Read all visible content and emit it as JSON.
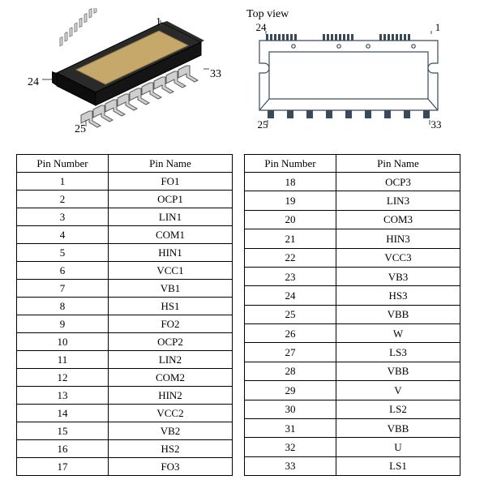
{
  "iso_view": {
    "labels": {
      "tl": "1",
      "tr": "33",
      "bl": "24",
      "br": "25"
    },
    "label_fontsize": 14,
    "label_color": "#000000",
    "body_fill": "#1a1a1a",
    "die_fill": "#c6a96a",
    "lead_fill": "#cfcfcf",
    "lead_stroke": "#5a5a5a"
  },
  "top_view": {
    "title": "Top view",
    "labels": {
      "tl": "24",
      "tr": "1",
      "bl": "25",
      "br": "33"
    },
    "label_fontsize": 14,
    "label_color": "#000000",
    "outline_stroke": "#3a4a5a",
    "outline_fill": "#ffffff",
    "stroke_width": 1.2
  },
  "tables": {
    "headers": {
      "num": "Pin Number",
      "name": "Pin Name"
    },
    "header_fontsize": 13,
    "cell_fontsize": 13,
    "border_color": "#000000",
    "left": [
      {
        "n": "1",
        "name": "FO1"
      },
      {
        "n": "2",
        "name": "OCP1"
      },
      {
        "n": "3",
        "name": "LIN1"
      },
      {
        "n": "4",
        "name": "COM1"
      },
      {
        "n": "5",
        "name": "HIN1"
      },
      {
        "n": "6",
        "name": "VCC1"
      },
      {
        "n": "7",
        "name": "VB1"
      },
      {
        "n": "8",
        "name": "HS1"
      },
      {
        "n": "9",
        "name": "FO2"
      },
      {
        "n": "10",
        "name": "OCP2"
      },
      {
        "n": "11",
        "name": "LIN2"
      },
      {
        "n": "12",
        "name": "COM2"
      },
      {
        "n": "13",
        "name": "HIN2"
      },
      {
        "n": "14",
        "name": "VCC2"
      },
      {
        "n": "15",
        "name": "VB2"
      },
      {
        "n": "16",
        "name": "HS2"
      },
      {
        "n": "17",
        "name": "FO3"
      }
    ],
    "right": [
      {
        "n": "18",
        "name": "OCP3"
      },
      {
        "n": "19",
        "name": "LIN3"
      },
      {
        "n": "20",
        "name": "COM3"
      },
      {
        "n": "21",
        "name": "HIN3"
      },
      {
        "n": "22",
        "name": "VCC3"
      },
      {
        "n": "23",
        "name": "VB3"
      },
      {
        "n": "24",
        "name": "HS3"
      },
      {
        "n": "25",
        "name": "VBB"
      },
      {
        "n": "26",
        "name": "W"
      },
      {
        "n": "27",
        "name": "LS3"
      },
      {
        "n": "28",
        "name": "VBB"
      },
      {
        "n": "29",
        "name": "V"
      },
      {
        "n": "30",
        "name": "LS2"
      },
      {
        "n": "31",
        "name": "VBB"
      },
      {
        "n": "32",
        "name": "U"
      },
      {
        "n": "33",
        "name": "LS1"
      }
    ]
  }
}
